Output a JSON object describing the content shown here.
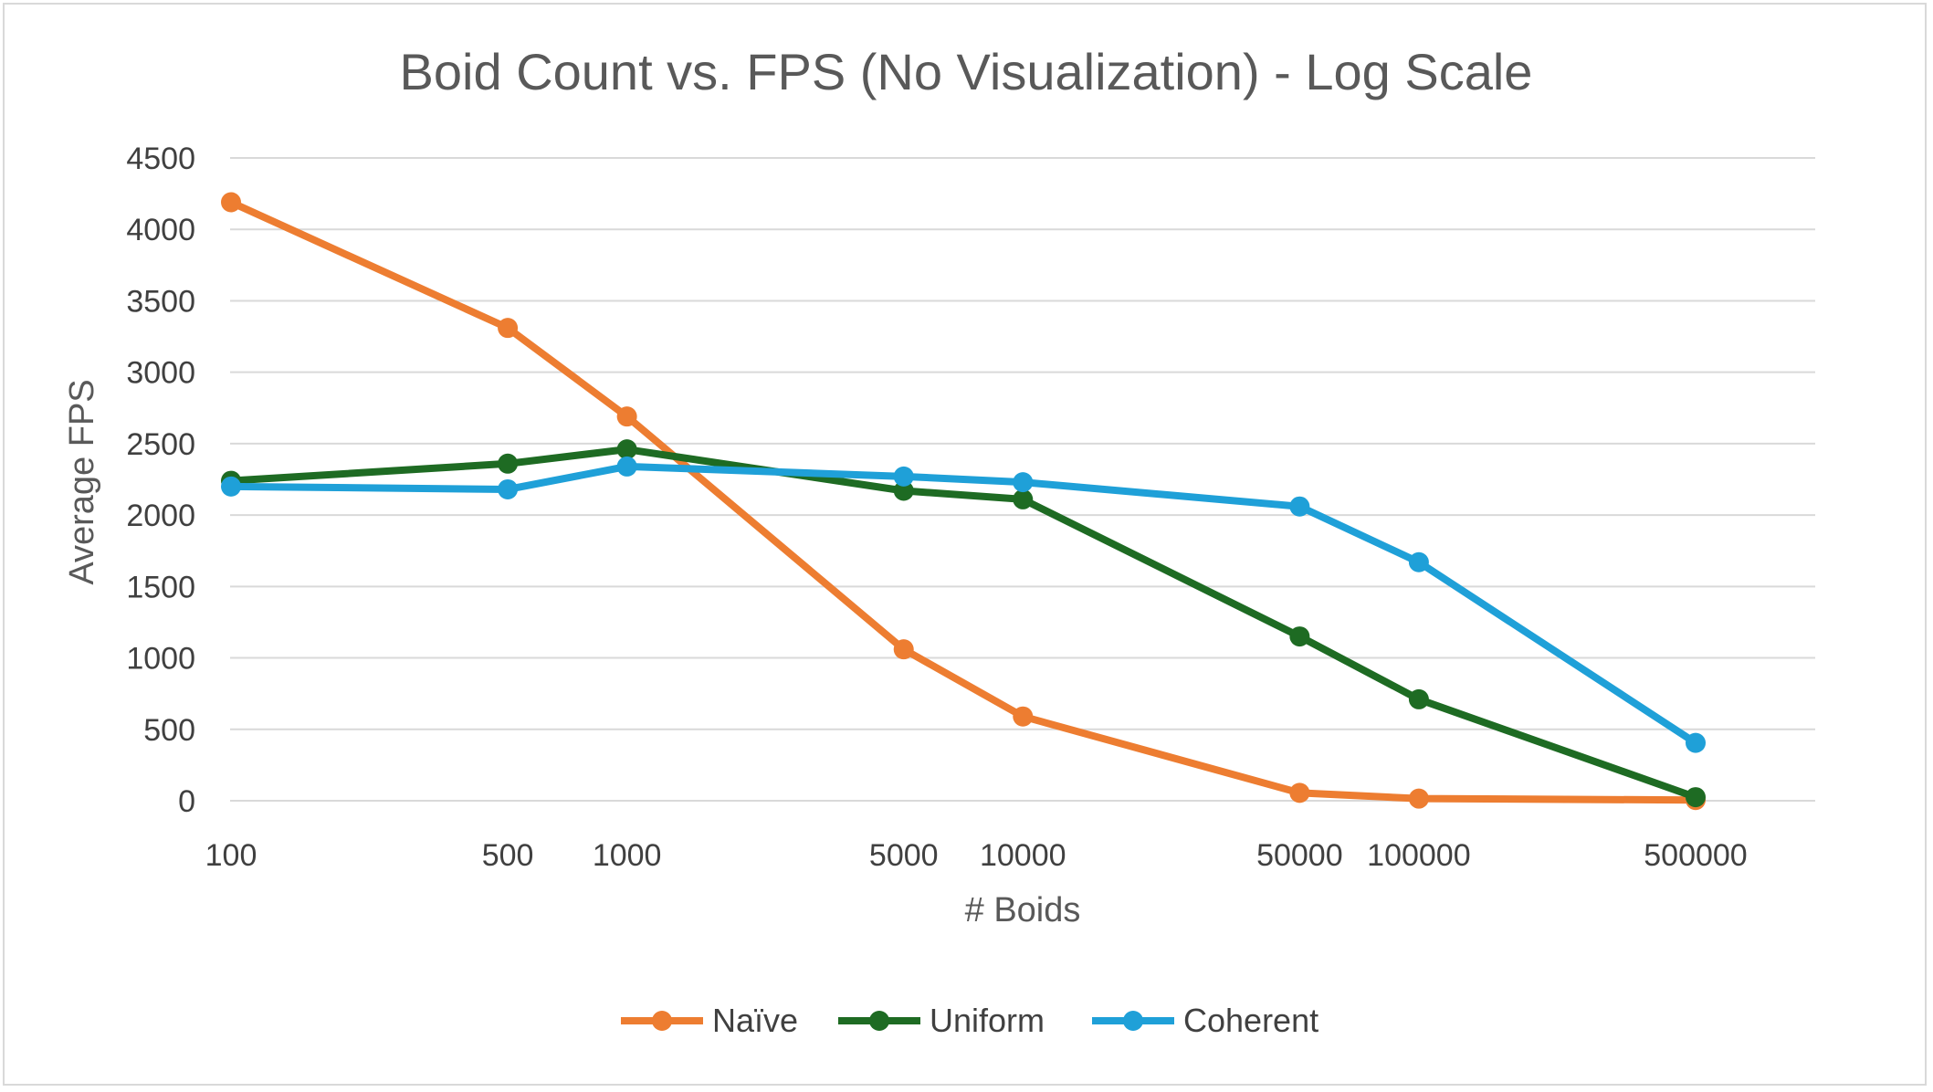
{
  "chart_data": {
    "type": "line",
    "title": "Boid Count vs. FPS (No Visualization) - Log Scale",
    "xlabel": "# Boids",
    "ylabel": "Average FPS",
    "x_scale": "log",
    "x": [
      100,
      500,
      1000,
      5000,
      10000,
      50000,
      100000,
      500000
    ],
    "x_tick_labels": [
      "100",
      "500",
      "1000",
      "5000",
      "10000",
      "50000",
      "100000",
      "500000"
    ],
    "ylim": [
      0,
      4500
    ],
    "y_ticks": [
      0,
      500,
      1000,
      1500,
      2000,
      2500,
      3000,
      3500,
      4000,
      4500
    ],
    "grid": "horizontal",
    "legend_position": "bottom",
    "series": [
      {
        "name": "Naïve",
        "color": "#ed7d31",
        "values": [
          4190,
          3310,
          2690,
          1060,
          590,
          55,
          15,
          5
        ]
      },
      {
        "name": "Uniform",
        "color": "#1e6b23",
        "values": [
          2240,
          2360,
          2460,
          2170,
          2110,
          1150,
          710,
          25
        ]
      },
      {
        "name": "Coherent",
        "color": "#1fa0d8",
        "values": [
          2200,
          2180,
          2340,
          2270,
          2230,
          2060,
          1670,
          405
        ]
      }
    ]
  }
}
